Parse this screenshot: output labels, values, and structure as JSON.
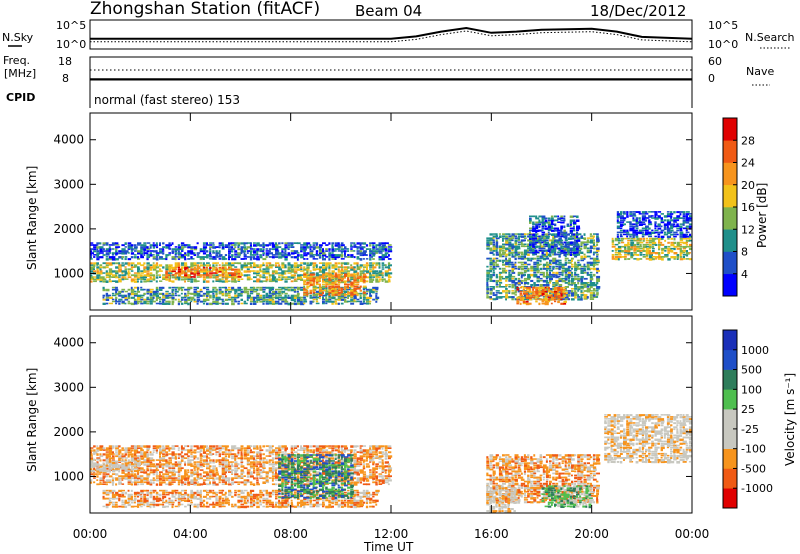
{
  "header": {
    "title": "Zhongshan Station (fitACF)",
    "beam": "Beam 04",
    "date": "18/Dec/2012"
  },
  "nsky_panel": {
    "left_label": "N.Sky",
    "left_ticks": [
      "10^5",
      "10^0"
    ],
    "right_ticks": [
      "10^5",
      "10^0"
    ],
    "right_label": "N.Search"
  },
  "freq_panel": {
    "left_label_1": "Freq.",
    "left_label_2": "[MHz]",
    "left_ticks": [
      "18",
      "8"
    ],
    "right_ticks": [
      "60",
      "0"
    ],
    "right_label": "Nave"
  },
  "cpid_panel": {
    "label": "CPID",
    "mode": "normal (fast stereo) 153"
  },
  "colors": {
    "power_scale": [
      "#0000ff",
      "#1f4fc8",
      "#1f8f8a",
      "#7fb34d",
      "#f2c21a",
      "#f7941d",
      "#f05a14",
      "#e00000"
    ],
    "velocity_scale": [
      "#e00000",
      "#f05a14",
      "#f7941d",
      "#c8c8c0",
      "#c8c8c0",
      "#4fbf4f",
      "#2e7d5b",
      "#1f4fc8",
      "#1a2fb8"
    ]
  },
  "chart_data": [
    {
      "type": "heatmap",
      "name": "power",
      "ylabel": "Slant Range [km]",
      "y_ticks": [
        "1000",
        "2000",
        "3000",
        "4000"
      ],
      "y_tick_values": [
        1000,
        2000,
        3000,
        4000
      ],
      "ylim": [
        180,
        4600
      ],
      "xlim": [
        0,
        24
      ],
      "colorbar_label": "Power [dB]",
      "colorbar_ticks": [
        "4",
        "8",
        "12",
        "16",
        "20",
        "24",
        "28"
      ],
      "colorbar_range": [
        0,
        30
      ],
      "patches": [
        {
          "t0": 0.0,
          "t1": 12.0,
          "r0": 800,
          "r1": 1250,
          "level": 14
        },
        {
          "t0": 0.0,
          "t1": 12.0,
          "r0": 1300,
          "r1": 1700,
          "level": 6
        },
        {
          "t0": 0.5,
          "t1": 11.5,
          "r0": 300,
          "r1": 700,
          "level": 10
        },
        {
          "t0": 3.0,
          "t1": 6.0,
          "r0": 900,
          "r1": 1150,
          "level": 22
        },
        {
          "t0": 8.5,
          "t1": 11.0,
          "r0": 500,
          "r1": 1000,
          "level": 20
        },
        {
          "t0": 15.8,
          "t1": 20.3,
          "r0": 400,
          "r1": 1900,
          "level": 10
        },
        {
          "t0": 17.5,
          "t1": 19.5,
          "r0": 1400,
          "r1": 2300,
          "level": 6
        },
        {
          "t0": 17.0,
          "t1": 19.0,
          "r0": 300,
          "r1": 700,
          "level": 22
        },
        {
          "t0": 20.8,
          "t1": 24.0,
          "r0": 1300,
          "r1": 1800,
          "level": 15
        },
        {
          "t0": 21.0,
          "t1": 24.0,
          "r0": 1800,
          "r1": 2400,
          "level": 5
        }
      ]
    },
    {
      "type": "heatmap",
      "name": "velocity",
      "ylabel": "Slant Range [km]",
      "y_ticks": [
        "1000",
        "2000",
        "3000",
        "4000"
      ],
      "y_tick_values": [
        1000,
        2000,
        3000,
        4000
      ],
      "ylim": [
        180,
        4600
      ],
      "xlim": [
        0,
        24
      ],
      "x_ticks": [
        "00:00",
        "04:00",
        "08:00",
        "12:00",
        "16:00",
        "20:00",
        "00:00"
      ],
      "x_tick_values": [
        0,
        4,
        8,
        12,
        16,
        20,
        24
      ],
      "xlabel": "Time UT",
      "colorbar_label": "Velocity [m s⁻¹]",
      "colorbar_ticks": [
        "-1000",
        "-500",
        "-100",
        "-25",
        "25",
        "100",
        "500",
        "1000"
      ],
      "patches": [
        {
          "t0": 0.0,
          "t1": 12.0,
          "r0": 800,
          "r1": 1700,
          "level": 2
        },
        {
          "t0": 0.0,
          "t1": 2.0,
          "r0": 1100,
          "r1": 1400,
          "level": 3
        },
        {
          "t0": 0.5,
          "t1": 11.5,
          "r0": 300,
          "r1": 700,
          "level": 2
        },
        {
          "t0": 7.5,
          "t1": 10.5,
          "r0": 500,
          "r1": 1500,
          "level": 6
        },
        {
          "t0": 15.8,
          "t1": 20.3,
          "r0": 400,
          "r1": 1500,
          "level": 2
        },
        {
          "t0": 15.8,
          "t1": 17.0,
          "r0": 200,
          "r1": 800,
          "level": 3
        },
        {
          "t0": 18.0,
          "t1": 20.0,
          "r0": 300,
          "r1": 800,
          "level": 5
        },
        {
          "t0": 20.5,
          "t1": 24.0,
          "r0": 1300,
          "r1": 2400,
          "level": 3
        }
      ]
    },
    {
      "type": "line",
      "name": "nsky-nsearch",
      "x": [
        0,
        2,
        4,
        6,
        8,
        10,
        12,
        13,
        14,
        15,
        16,
        17,
        18,
        19,
        20,
        21,
        22,
        24
      ],
      "values": [
        0.3,
        0.3,
        0.3,
        0.3,
        0.3,
        0.3,
        0.3,
        0.4,
        0.6,
        0.75,
        0.55,
        0.6,
        0.68,
        0.7,
        0.72,
        0.6,
        0.38,
        0.3
      ]
    }
  ]
}
